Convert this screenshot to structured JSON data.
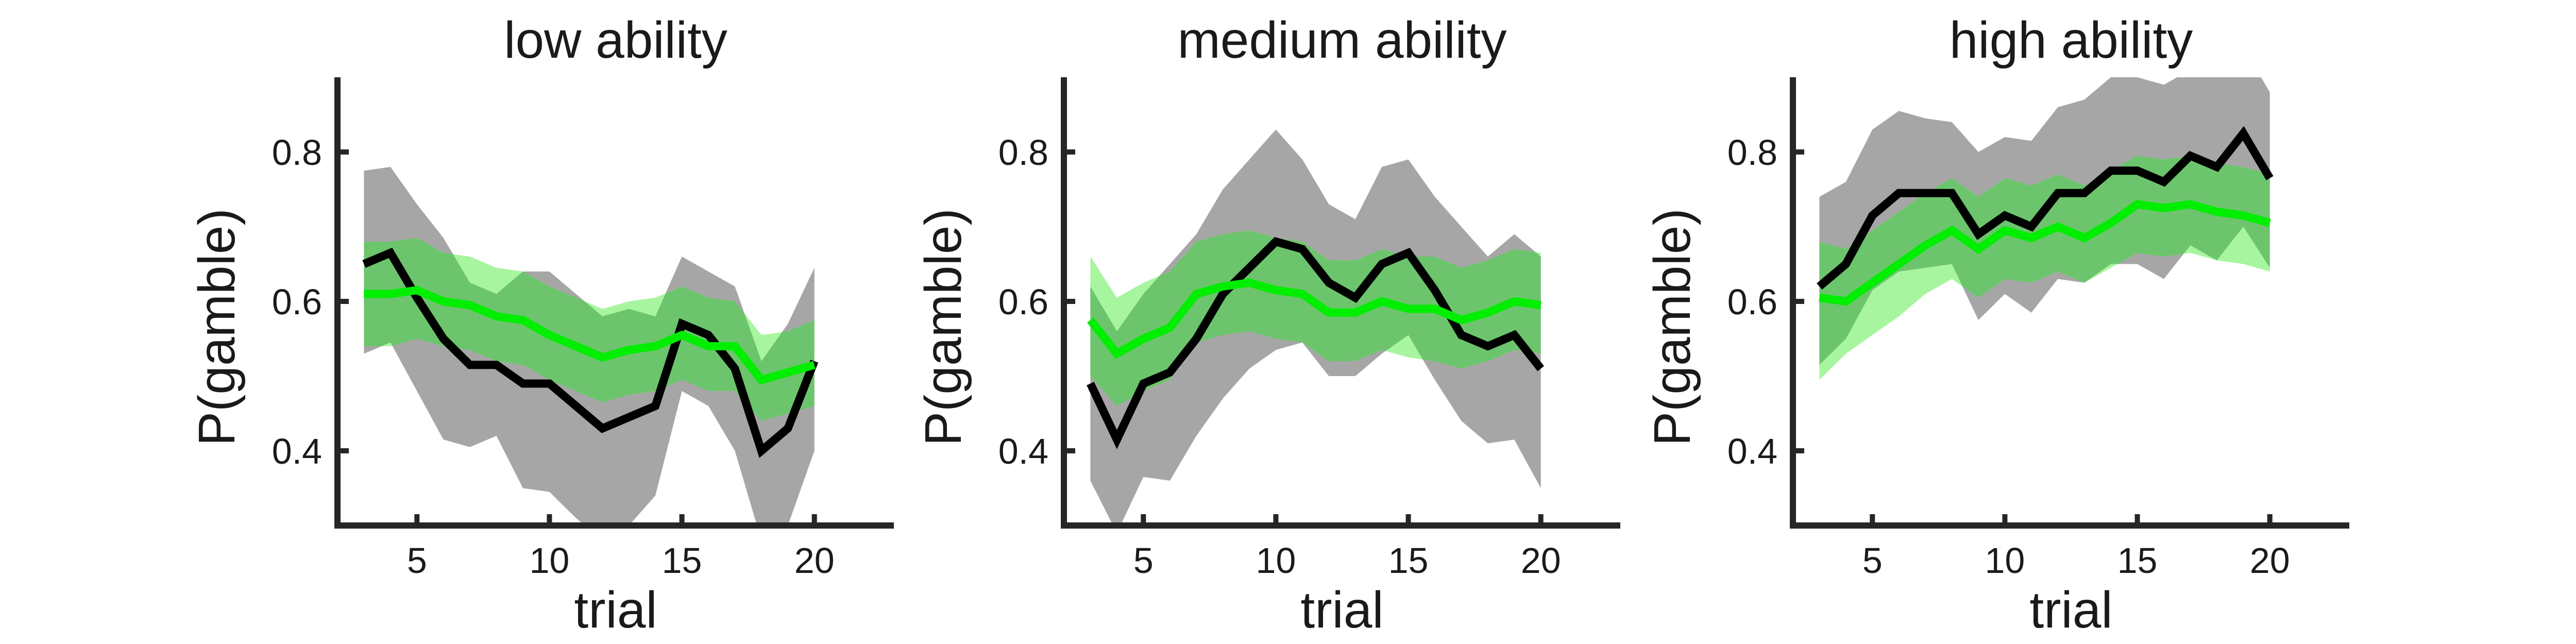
{
  "chart_data": [
    {
      "type": "line",
      "title": "low ability",
      "xlabel": "trial",
      "ylabel": "P(gamble)",
      "xlim": [
        2,
        23
      ],
      "ylim": [
        0.3,
        0.9
      ],
      "xticks": [
        5,
        10,
        15,
        20
      ],
      "yticks": [
        0.4,
        0.6,
        0.8
      ],
      "xtick_labels": [
        "5",
        "10",
        "15",
        "20"
      ],
      "ytick_labels": [
        "0.4",
        "0.6",
        "0.8"
      ],
      "grid": false,
      "colors": {
        "black_line": "#000000",
        "green_line": "#00ee00",
        "gray_band": "#a6a6a6",
        "light_green_band": "#a8f5a0",
        "overlap_band": "#6cc56c"
      },
      "x": [
        3,
        4,
        5,
        6,
        7,
        8,
        9,
        10,
        11,
        12,
        13,
        14,
        15,
        16,
        17,
        18,
        19,
        20
      ],
      "series": [
        {
          "values": [
            0.65,
            0.665,
            0.605,
            0.55,
            0.515,
            0.515,
            0.49,
            0.49,
            0.46,
            0.43,
            0.445,
            0.46,
            0.57,
            0.555,
            0.51,
            0.4,
            0.43,
            0.52
          ],
          "band_lower": [
            0.53,
            0.545,
            0.48,
            0.415,
            0.405,
            0.42,
            0.35,
            0.345,
            0.31,
            0.28,
            0.3,
            0.34,
            0.48,
            0.46,
            0.4,
            0.28,
            0.3,
            0.4
          ],
          "band_upper": [
            0.775,
            0.78,
            0.73,
            0.685,
            0.625,
            0.61,
            0.64,
            0.64,
            0.61,
            0.58,
            0.59,
            0.58,
            0.66,
            0.64,
            0.62,
            0.52,
            0.57,
            0.645
          ]
        },
        {
          "values": [
            0.61,
            0.61,
            0.615,
            0.6,
            0.595,
            0.58,
            0.575,
            0.555,
            0.54,
            0.525,
            0.535,
            0.54,
            0.555,
            0.54,
            0.54,
            0.495,
            0.505,
            0.515
          ],
          "band_lower": [
            0.54,
            0.54,
            0.55,
            0.54,
            0.535,
            0.52,
            0.515,
            0.495,
            0.48,
            0.465,
            0.475,
            0.48,
            0.495,
            0.48,
            0.48,
            0.44,
            0.45,
            0.46
          ],
          "band_upper": [
            0.68,
            0.68,
            0.685,
            0.665,
            0.66,
            0.645,
            0.64,
            0.62,
            0.605,
            0.59,
            0.6,
            0.605,
            0.62,
            0.605,
            0.6,
            0.555,
            0.56,
            0.575
          ]
        }
      ]
    },
    {
      "type": "line",
      "title": "medium ability",
      "xlabel": "trial",
      "ylabel": "P(gamble)",
      "xlim": [
        2,
        23
      ],
      "ylim": [
        0.3,
        0.9
      ],
      "xticks": [
        5,
        10,
        15,
        20
      ],
      "yticks": [
        0.4,
        0.6,
        0.8
      ],
      "xtick_labels": [
        "5",
        "10",
        "15",
        "20"
      ],
      "ytick_labels": [
        "0.4",
        "0.6",
        "0.8"
      ],
      "grid": false,
      "colors": {
        "black_line": "#000000",
        "green_line": "#00ee00",
        "gray_band": "#a6a6a6",
        "light_green_band": "#a8f5a0",
        "overlap_band": "#6cc56c"
      },
      "x": [
        3,
        4,
        5,
        6,
        7,
        8,
        9,
        10,
        11,
        12,
        13,
        14,
        15,
        16,
        17,
        18,
        19,
        20
      ],
      "series": [
        {
          "values": [
            0.49,
            0.415,
            0.49,
            0.505,
            0.55,
            0.61,
            0.645,
            0.68,
            0.67,
            0.625,
            0.605,
            0.65,
            0.665,
            0.615,
            0.555,
            0.54,
            0.555,
            0.51
          ],
          "band_lower": [
            0.36,
            0.29,
            0.365,
            0.36,
            0.42,
            0.47,
            0.51,
            0.535,
            0.545,
            0.5,
            0.5,
            0.53,
            0.555,
            0.495,
            0.44,
            0.41,
            0.415,
            0.35
          ],
          "band_upper": [
            0.62,
            0.56,
            0.61,
            0.65,
            0.69,
            0.75,
            0.79,
            0.83,
            0.79,
            0.73,
            0.71,
            0.78,
            0.79,
            0.74,
            0.7,
            0.66,
            0.69,
            0.66
          ]
        },
        {
          "values": [
            0.575,
            0.53,
            0.55,
            0.565,
            0.61,
            0.62,
            0.625,
            0.615,
            0.61,
            0.585,
            0.585,
            0.6,
            0.59,
            0.59,
            0.575,
            0.585,
            0.6,
            0.595
          ],
          "band_lower": [
            0.5,
            0.46,
            0.48,
            0.495,
            0.545,
            0.555,
            0.56,
            0.55,
            0.545,
            0.52,
            0.52,
            0.535,
            0.525,
            0.52,
            0.51,
            0.52,
            0.535,
            0.53
          ],
          "band_upper": [
            0.66,
            0.605,
            0.625,
            0.64,
            0.68,
            0.69,
            0.695,
            0.685,
            0.68,
            0.655,
            0.655,
            0.67,
            0.66,
            0.66,
            0.645,
            0.655,
            0.67,
            0.665
          ]
        }
      ]
    },
    {
      "type": "line",
      "title": "high ability",
      "xlabel": "trial",
      "ylabel": "P(gamble)",
      "xlim": [
        2,
        23
      ],
      "ylim": [
        0.3,
        0.9
      ],
      "xticks": [
        5,
        10,
        15,
        20
      ],
      "yticks": [
        0.4,
        0.6,
        0.8
      ],
      "xtick_labels": [
        "5",
        "10",
        "15",
        "20"
      ],
      "ytick_labels": [
        "0.4",
        "0.6",
        "0.8"
      ],
      "grid": false,
      "colors": {
        "black_line": "#000000",
        "green_line": "#00ee00",
        "gray_band": "#a6a6a6",
        "light_green_band": "#a8f5a0",
        "overlap_band": "#6cc56c"
      },
      "x": [
        3,
        4,
        5,
        6,
        7,
        8,
        9,
        10,
        11,
        12,
        13,
        14,
        15,
        16,
        17,
        18,
        19,
        20
      ],
      "series": [
        {
          "values": [
            0.62,
            0.65,
            0.715,
            0.745,
            0.745,
            0.745,
            0.69,
            0.715,
            0.7,
            0.745,
            0.745,
            0.775,
            0.775,
            0.76,
            0.795,
            0.78,
            0.825,
            0.765
          ],
          "band_lower": [
            0.515,
            0.55,
            0.615,
            0.64,
            0.645,
            0.65,
            0.575,
            0.61,
            0.585,
            0.63,
            0.625,
            0.65,
            0.65,
            0.63,
            0.675,
            0.655,
            0.7,
            0.645
          ],
          "band_upper": [
            0.74,
            0.76,
            0.83,
            0.855,
            0.845,
            0.84,
            0.8,
            0.82,
            0.815,
            0.86,
            0.87,
            0.9,
            0.9,
            0.89,
            0.91,
            0.9,
            0.94,
            0.88
          ]
        },
        {
          "values": [
            0.605,
            0.6,
            0.625,
            0.65,
            0.675,
            0.695,
            0.67,
            0.695,
            0.685,
            0.7,
            0.685,
            0.705,
            0.73,
            0.725,
            0.73,
            0.72,
            0.715,
            0.705
          ],
          "band_lower": [
            0.495,
            0.53,
            0.555,
            0.58,
            0.61,
            0.63,
            0.605,
            0.63,
            0.625,
            0.64,
            0.625,
            0.645,
            0.665,
            0.66,
            0.665,
            0.655,
            0.65,
            0.64
          ],
          "band_upper": [
            0.68,
            0.67,
            0.695,
            0.72,
            0.745,
            0.765,
            0.74,
            0.765,
            0.755,
            0.77,
            0.755,
            0.775,
            0.795,
            0.79,
            0.795,
            0.785,
            0.78,
            0.77
          ]
        }
      ]
    }
  ]
}
